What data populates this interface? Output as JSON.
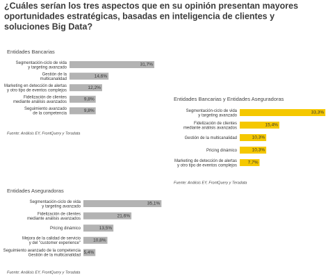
{
  "title": [
    "¿Cuáles serían los tres aspectos que en su opinión presentan mayores",
    "oportunidades estratégicas, basadas en inteligencia de clientes y",
    "soluciones Big Data?"
  ],
  "chart_data": [
    {
      "type": "bar",
      "title": "Entidades Bancarias",
      "color": "#b3b3b3",
      "categories": [
        [
          "Segmentación-ciclo de vida",
          "y targeting avanzado"
        ],
        [
          "Gestión de la",
          "multicanalidad"
        ],
        [
          "Marketing en detección de alertas",
          "y otro tipo de eventos complejos"
        ],
        [
          "Fidelización de clientes",
          "mediante análisis avanzados"
        ],
        [
          "Seguimiento avanzado",
          "de la competencia"
        ]
      ],
      "values": [
        31.7,
        14.6,
        12.2,
        9.8,
        9.8
      ],
      "value_labels": [
        "31,7%",
        "14,6%",
        "12,2%",
        "9,8%",
        "9,8%"
      ],
      "source": "Fuente: Análisis EY, FrontQuery y Teradata"
    },
    {
      "type": "bar",
      "title": "Entidades Bancarias y Entidades Aseguradoras",
      "color": "#f5c800",
      "categories": [
        [
          "Segmentación-ciclo de vida",
          "y targeting avanzado"
        ],
        [
          "Fidelización de clientes",
          "mediante análisis avanzados"
        ],
        [
          "Gestión de la multicanalidad"
        ],
        [
          "Pricing dinámico"
        ],
        [
          "Marketing de detección de alertas",
          "y otro tipo de eventos complejos"
        ]
      ],
      "values": [
        33.3,
        15.4,
        10.3,
        10.3,
        7.7
      ],
      "value_labels": [
        "33,3%",
        "15,4%",
        "10,3%",
        "10,3%",
        "7,7%"
      ],
      "source": "Fuente: Análisis EY, FrontQuery y Teradata"
    },
    {
      "type": "bar",
      "title": "Entidades Aseguradoras",
      "color": "#b3b3b3",
      "categories": [
        [
          "Segmentación-ciclo de vida",
          "y targeting avanzado"
        ],
        [
          "Fidelización de clientes",
          "mediante análisis avanzados"
        ],
        [
          "Pricing dinámico"
        ],
        [
          "Mejora de la calidad de servicio",
          "y del \"customer experience\""
        ],
        [
          "Seguimiento avanzado de la competencia",
          "Gestión de la multicanalidad"
        ]
      ],
      "values": [
        35.1,
        21.6,
        13.5,
        10.8,
        5.4
      ],
      "value_labels": [
        "35,1%",
        "21,6%",
        "13,5%",
        "10,8%",
        "5,4%"
      ],
      "source": "Fuente: Análisis EY, FrontQuery y Teradata"
    }
  ]
}
